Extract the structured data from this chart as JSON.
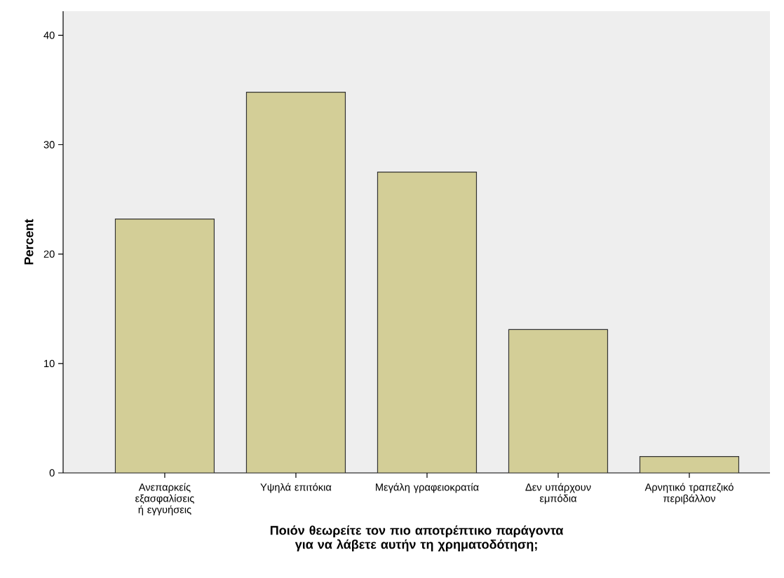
{
  "chart_data": {
    "type": "bar",
    "xlabel": "Ποιόν θεωρείτε τον πιο αποτρέπτικο παράγοντα για να λάβετε αυτήν τη χρηματοδότηση;",
    "ylabel": "Percent",
    "categories": [
      "Ανεπαρκείς εξασφαλίσεις ή εγγυήσεις",
      "Υψηλά επιτόκια",
      "Μεγάλη γραφειοκρατία",
      "Δεν υπάρχουν εμπόδια",
      "Αρνητικό τραπεζικό περιβάλλον"
    ],
    "values": [
      23.2,
      34.8,
      27.5,
      13.1,
      1.5
    ],
    "color": "#d3ce97",
    "ylim": [
      0,
      42.2
    ],
    "yticks": [
      0,
      10,
      20,
      30,
      40
    ],
    "grid": false
  }
}
